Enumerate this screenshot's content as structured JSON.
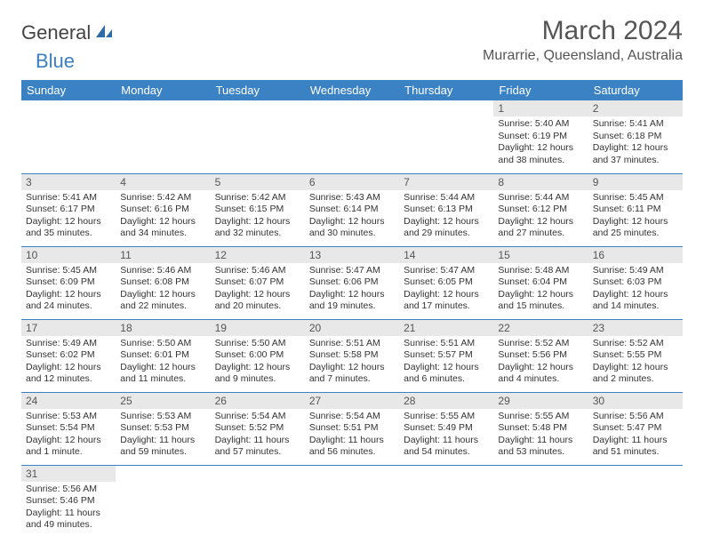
{
  "logo": {
    "text1": "General",
    "text2": "Blue"
  },
  "title": "March 2024",
  "location": "Murarrie, Queensland, Australia",
  "headers": [
    "Sunday",
    "Monday",
    "Tuesday",
    "Wednesday",
    "Thursday",
    "Friday",
    "Saturday"
  ],
  "colors": {
    "headerBg": "#3b82c4",
    "dayBg": "#e8e8e8",
    "border": "#3b82c4"
  },
  "weeks": [
    [
      null,
      null,
      null,
      null,
      null,
      {
        "n": "1",
        "sr": "5:40 AM",
        "ss": "6:19 PM",
        "dl": "12 hours and 38 minutes."
      },
      {
        "n": "2",
        "sr": "5:41 AM",
        "ss": "6:18 PM",
        "dl": "12 hours and 37 minutes."
      }
    ],
    [
      {
        "n": "3",
        "sr": "5:41 AM",
        "ss": "6:17 PM",
        "dl": "12 hours and 35 minutes."
      },
      {
        "n": "4",
        "sr": "5:42 AM",
        "ss": "6:16 PM",
        "dl": "12 hours and 34 minutes."
      },
      {
        "n": "5",
        "sr": "5:42 AM",
        "ss": "6:15 PM",
        "dl": "12 hours and 32 minutes."
      },
      {
        "n": "6",
        "sr": "5:43 AM",
        "ss": "6:14 PM",
        "dl": "12 hours and 30 minutes."
      },
      {
        "n": "7",
        "sr": "5:44 AM",
        "ss": "6:13 PM",
        "dl": "12 hours and 29 minutes."
      },
      {
        "n": "8",
        "sr": "5:44 AM",
        "ss": "6:12 PM",
        "dl": "12 hours and 27 minutes."
      },
      {
        "n": "9",
        "sr": "5:45 AM",
        "ss": "6:11 PM",
        "dl": "12 hours and 25 minutes."
      }
    ],
    [
      {
        "n": "10",
        "sr": "5:45 AM",
        "ss": "6:09 PM",
        "dl": "12 hours and 24 minutes."
      },
      {
        "n": "11",
        "sr": "5:46 AM",
        "ss": "6:08 PM",
        "dl": "12 hours and 22 minutes."
      },
      {
        "n": "12",
        "sr": "5:46 AM",
        "ss": "6:07 PM",
        "dl": "12 hours and 20 minutes."
      },
      {
        "n": "13",
        "sr": "5:47 AM",
        "ss": "6:06 PM",
        "dl": "12 hours and 19 minutes."
      },
      {
        "n": "14",
        "sr": "5:47 AM",
        "ss": "6:05 PM",
        "dl": "12 hours and 17 minutes."
      },
      {
        "n": "15",
        "sr": "5:48 AM",
        "ss": "6:04 PM",
        "dl": "12 hours and 15 minutes."
      },
      {
        "n": "16",
        "sr": "5:49 AM",
        "ss": "6:03 PM",
        "dl": "12 hours and 14 minutes."
      }
    ],
    [
      {
        "n": "17",
        "sr": "5:49 AM",
        "ss": "6:02 PM",
        "dl": "12 hours and 12 minutes."
      },
      {
        "n": "18",
        "sr": "5:50 AM",
        "ss": "6:01 PM",
        "dl": "12 hours and 11 minutes."
      },
      {
        "n": "19",
        "sr": "5:50 AM",
        "ss": "6:00 PM",
        "dl": "12 hours and 9 minutes."
      },
      {
        "n": "20",
        "sr": "5:51 AM",
        "ss": "5:58 PM",
        "dl": "12 hours and 7 minutes."
      },
      {
        "n": "21",
        "sr": "5:51 AM",
        "ss": "5:57 PM",
        "dl": "12 hours and 6 minutes."
      },
      {
        "n": "22",
        "sr": "5:52 AM",
        "ss": "5:56 PM",
        "dl": "12 hours and 4 minutes."
      },
      {
        "n": "23",
        "sr": "5:52 AM",
        "ss": "5:55 PM",
        "dl": "12 hours and 2 minutes."
      }
    ],
    [
      {
        "n": "24",
        "sr": "5:53 AM",
        "ss": "5:54 PM",
        "dl": "12 hours and 1 minute."
      },
      {
        "n": "25",
        "sr": "5:53 AM",
        "ss": "5:53 PM",
        "dl": "11 hours and 59 minutes."
      },
      {
        "n": "26",
        "sr": "5:54 AM",
        "ss": "5:52 PM",
        "dl": "11 hours and 57 minutes."
      },
      {
        "n": "27",
        "sr": "5:54 AM",
        "ss": "5:51 PM",
        "dl": "11 hours and 56 minutes."
      },
      {
        "n": "28",
        "sr": "5:55 AM",
        "ss": "5:49 PM",
        "dl": "11 hours and 54 minutes."
      },
      {
        "n": "29",
        "sr": "5:55 AM",
        "ss": "5:48 PM",
        "dl": "11 hours and 53 minutes."
      },
      {
        "n": "30",
        "sr": "5:56 AM",
        "ss": "5:47 PM",
        "dl": "11 hours and 51 minutes."
      }
    ],
    [
      {
        "n": "31",
        "sr": "5:56 AM",
        "ss": "5:46 PM",
        "dl": "11 hours and 49 minutes."
      },
      null,
      null,
      null,
      null,
      null,
      null
    ]
  ],
  "labels": {
    "sunrise": "Sunrise:",
    "sunset": "Sunset:",
    "daylight": "Daylight:"
  }
}
